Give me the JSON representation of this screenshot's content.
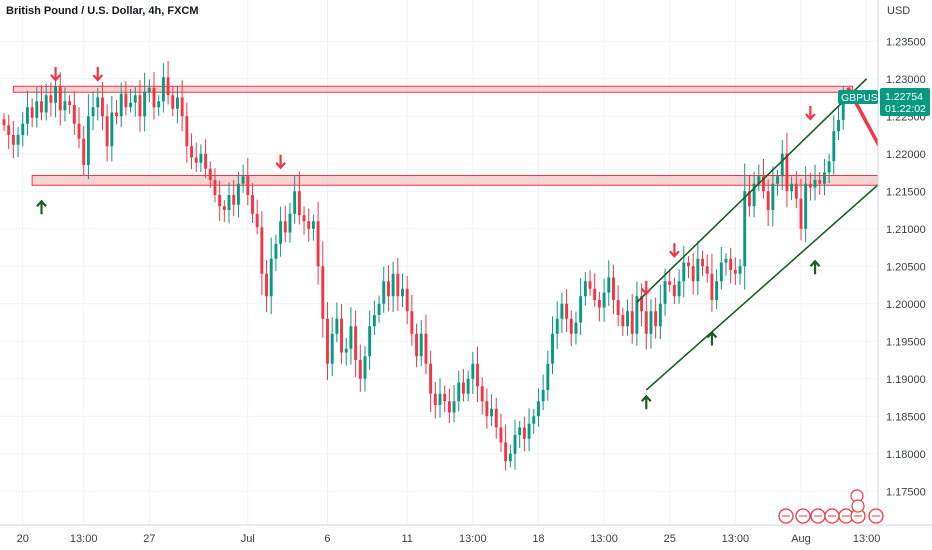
{
  "chart_data": {
    "type": "candlestick",
    "title": "British Pound / U.S. Dollar, 4h, FXCM",
    "currency_label": "USD",
    "symbol": "GBPUSD",
    "last_price": "1.22754",
    "countdown": "01:22:02",
    "ylim": [
      1.1705,
      1.2405
    ],
    "y_ticks": [
      1.175,
      1.18,
      1.185,
      1.19,
      1.195,
      1.2,
      1.205,
      1.21,
      1.215,
      1.22,
      1.225,
      1.23,
      1.235
    ],
    "y_tick_labels": [
      "1.17500",
      "1.18000",
      "1.18500",
      "1.19000",
      "1.19500",
      "1.20000",
      "1.20500",
      "1.21000",
      "1.21500",
      "1.22000",
      "1.22500",
      "1.23000",
      "1.23500"
    ],
    "x_range": [
      0,
      186
    ],
    "x_ticks": [
      {
        "label": "20",
        "bar": 4
      },
      {
        "label": "13:00",
        "bar": 17
      },
      {
        "label": "27",
        "bar": 31
      },
      {
        "label": "Jul",
        "bar": 52
      },
      {
        "label": "6",
        "bar": 69
      },
      {
        "label": "11",
        "bar": 86
      },
      {
        "label": "13:00",
        "bar": 100
      },
      {
        "label": "18",
        "bar": 114
      },
      {
        "label": "13:00",
        "bar": 128
      },
      {
        "label": "25",
        "bar": 142
      },
      {
        "label": "13:00",
        "bar": 156
      },
      {
        "label": "Aug",
        "bar": 170
      },
      {
        "label": "13:00",
        "bar": 184
      }
    ],
    "colors": {
      "up": "#089981",
      "down": "#f23645",
      "channel": "#1b5e20",
      "zone_fill": "#f7c3c6",
      "zone_stroke": "#f23645",
      "arrow_down": "#f23645",
      "arrow_up": "#1b5e20"
    },
    "closes": [
      1.2238,
      1.2225,
      1.2212,
      1.2225,
      1.224,
      1.2262,
      1.2248,
      1.227,
      1.2255,
      1.2278,
      1.2268,
      1.229,
      1.2258,
      1.227,
      1.2265,
      1.224,
      1.222,
      1.2185,
      1.225,
      1.2262,
      1.2275,
      1.225,
      1.221,
      1.2255,
      1.225,
      1.228,
      1.2262,
      1.2268,
      1.2278,
      1.225,
      1.2282,
      1.2288,
      1.2262,
      1.227,
      1.2302,
      1.2278,
      1.226,
      1.2275,
      1.225,
      1.221,
      1.2195,
      1.2188,
      1.22,
      1.218,
      1.2165,
      1.2145,
      1.213,
      1.2125,
      1.2145,
      1.2132,
      1.216,
      1.217,
      1.2145,
      1.212,
      1.2102,
      1.204,
      1.201,
      1.206,
      1.208,
      1.211,
      1.2095,
      1.212,
      1.215,
      1.2118,
      1.211,
      1.21,
      1.211,
      1.205,
      1.198,
      1.192,
      1.196,
      1.198,
      1.1935,
      1.194,
      1.197,
      1.1925,
      1.19,
      1.193,
      1.197,
      1.1985,
      1.2,
      1.203,
      1.201,
      1.204,
      1.201,
      1.202,
      1.199,
      1.196,
      1.193,
      1.196,
      1.192,
      1.188,
      1.1865,
      1.188,
      1.187,
      1.1855,
      1.187,
      1.1895,
      1.188,
      1.19,
      1.192,
      1.189,
      1.187,
      1.185,
      1.186,
      1.1835,
      1.1815,
      1.179,
      1.18,
      1.1825,
      1.1835,
      1.182,
      1.184,
      1.185,
      1.187,
      1.1885,
      1.192,
      1.196,
      1.198,
      1.2,
      1.198,
      1.196,
      1.1975,
      1.201,
      1.203,
      1.202,
      1.2005,
      1.1995,
      1.2015,
      1.2035,
      1.2005,
      1.1985,
      1.197,
      1.199,
      1.196,
      1.201,
      1.199,
      1.196,
      1.199,
      1.197,
      1.2,
      1.203,
      1.2025,
      1.201,
      1.203,
      1.2055,
      1.205,
      1.203,
      1.206,
      1.205,
      1.204,
      1.2005,
      1.203,
      1.2055,
      1.206,
      1.2045,
      1.204,
      1.205,
      1.215,
      1.213,
      1.216,
      1.217,
      1.215,
      1.2125,
      1.216,
      1.217,
      1.22,
      1.215,
      1.216,
      1.214,
      1.21,
      1.216,
      1.2155,
      1.2165,
      1.216,
      1.2175,
      1.219,
      1.223,
      1.2245,
      1.2275
    ],
    "support_resistance_zones": [
      {
        "top": 1.229,
        "bottom": 1.2282,
        "x_start": 2,
        "x_end": 181
      },
      {
        "top": 1.2171,
        "bottom": 1.2158,
        "x_start": 6,
        "x_end": 188
      }
    ],
    "channel_lines": [
      {
        "from": {
          "x": 135,
          "y": 1.2002
        },
        "to": {
          "x": 184,
          "y": 1.23
        }
      },
      {
        "from": {
          "x": 137,
          "y": 1.1885
        },
        "to": {
          "x": 193,
          "y": 1.2195
        }
      }
    ],
    "projection_arrow": {
      "from": {
        "x": 180,
        "y": 1.2288
      },
      "to": {
        "x": 191,
        "y": 1.2163
      }
    },
    "down_arrows": [
      {
        "x": 11,
        "y": 1.2305
      },
      {
        "x": 20,
        "y": 1.2305
      },
      {
        "x": 59,
        "y": 1.2188
      },
      {
        "x": 137,
        "y": 1.202
      },
      {
        "x": 143,
        "y": 1.207
      },
      {
        "x": 172,
        "y": 1.2253
      }
    ],
    "up_arrows": [
      {
        "x": 8,
        "y": 1.213
      },
      {
        "x": 137,
        "y": 1.187
      },
      {
        "x": 151,
        "y": 1.1955
      },
      {
        "x": 173,
        "y": 1.205
      }
    ]
  }
}
